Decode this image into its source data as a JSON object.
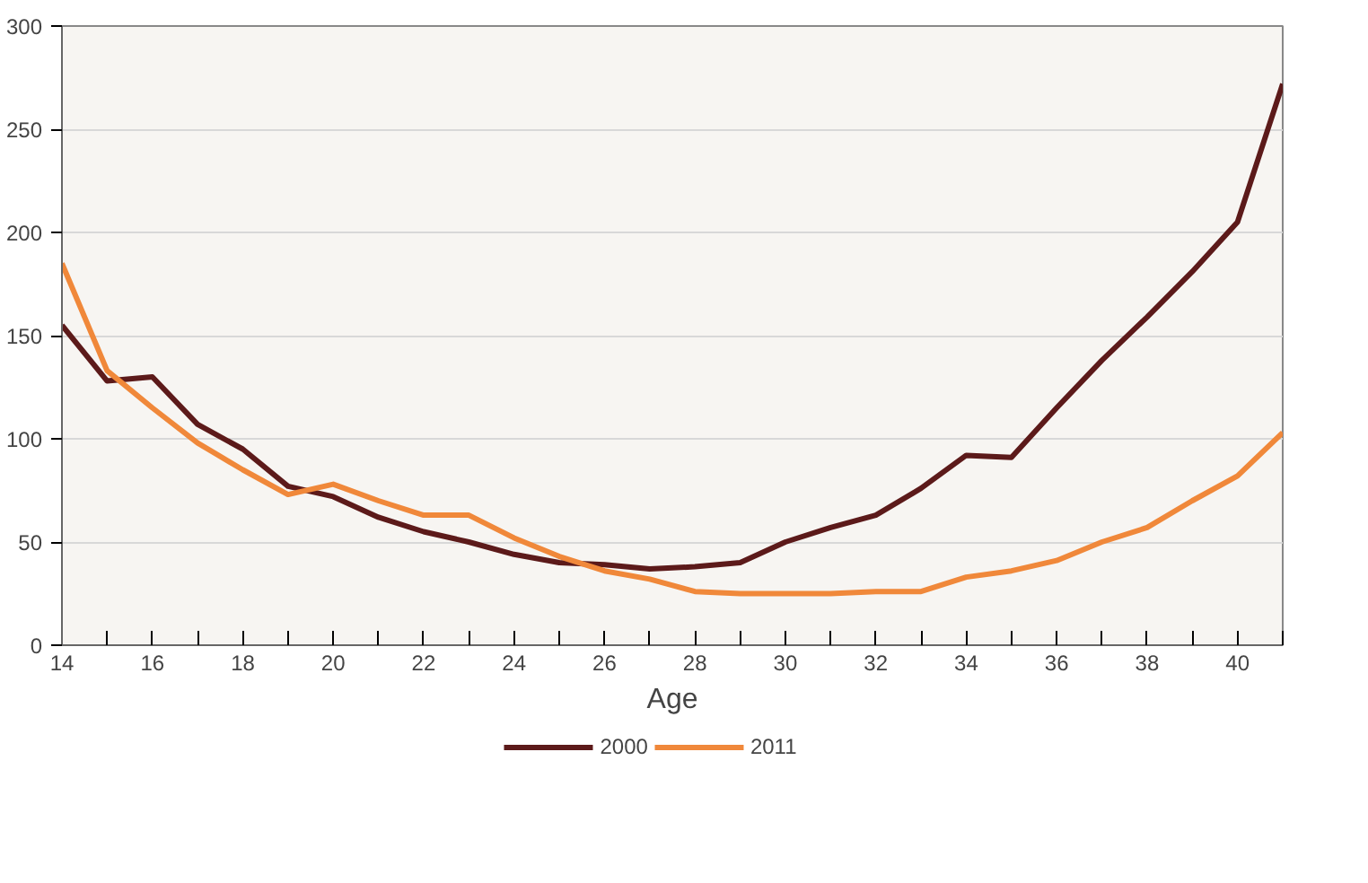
{
  "chart_data": {
    "type": "line",
    "xlabel": "Age",
    "x": [
      14,
      15,
      16,
      17,
      18,
      19,
      20,
      21,
      22,
      23,
      24,
      25,
      26,
      27,
      28,
      29,
      30,
      31,
      32,
      33,
      34,
      35,
      36,
      37,
      38,
      39,
      40,
      41
    ],
    "series": [
      {
        "name": "2000",
        "color": "#5c1a1a",
        "values": [
          155,
          128,
          130,
          107,
          95,
          77,
          72,
          62,
          55,
          50,
          44,
          40,
          39,
          37,
          38,
          40,
          50,
          57,
          63,
          76,
          92,
          91,
          115,
          138,
          159,
          181,
          205,
          272
        ]
      },
      {
        "name": "2011",
        "color": "#f0883a",
        "values": [
          185,
          133,
          115,
          98,
          85,
          73,
          78,
          70,
          63,
          63,
          52,
          43,
          36,
          32,
          26,
          25,
          25,
          25,
          26,
          26,
          33,
          36,
          41,
          50,
          57,
          70,
          82,
          103
        ]
      }
    ],
    "xlim": [
      14,
      41
    ],
    "xticks": [
      14,
      {
        "value": 15,
        "label": null
      },
      16,
      {
        "value": 17,
        "label": null
      },
      18,
      {
        "value": 19,
        "label": null
      },
      20,
      {
        "value": 21,
        "label": null
      },
      22,
      {
        "value": 23,
        "label": null
      },
      24,
      {
        "value": 25,
        "label": null
      },
      26,
      {
        "value": 27,
        "label": null
      },
      28,
      {
        "value": 29,
        "label": null
      },
      30,
      {
        "value": 31,
        "label": null
      },
      32,
      {
        "value": 33,
        "label": null
      },
      34,
      {
        "value": 35,
        "label": null
      },
      36,
      {
        "value": 37,
        "label": null
      },
      38,
      {
        "value": 39,
        "label": null
      },
      40,
      {
        "value": 41,
        "label": null
      }
    ],
    "ylim": [
      0,
      300
    ],
    "yticks": [
      0,
      50,
      100,
      150,
      200,
      250,
      300
    ],
    "grid": "y",
    "legend": "bottom"
  }
}
